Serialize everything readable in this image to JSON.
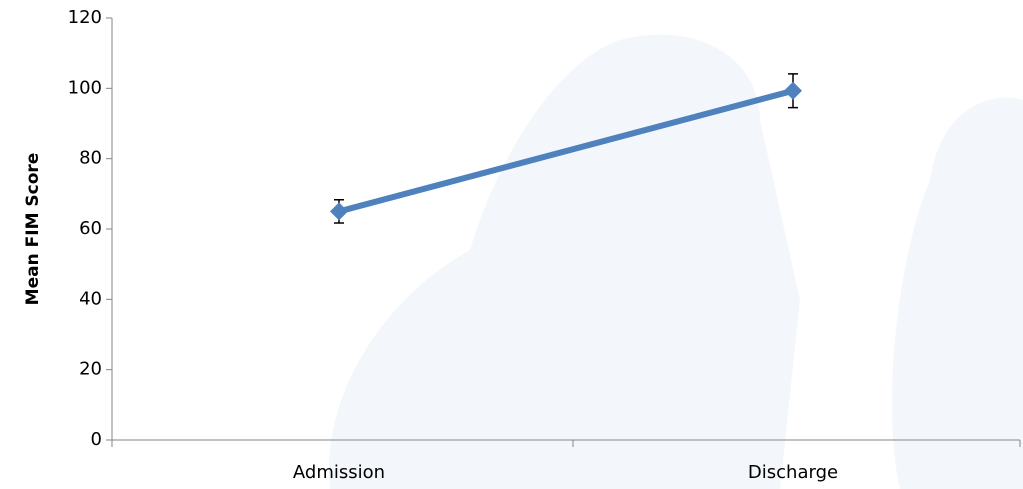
{
  "chart_data": {
    "type": "line",
    "y_label": "Mean FIM Score",
    "categories": [
      "Admission",
      "Discharge"
    ],
    "values": [
      65,
      99.3
    ],
    "errors": [
      3.3,
      4.8
    ],
    "color": "#4f81bd",
    "ylim": [
      0,
      120
    ],
    "yticks": [
      0,
      20,
      40,
      60,
      80,
      100,
      120
    ],
    "grid": false
  }
}
